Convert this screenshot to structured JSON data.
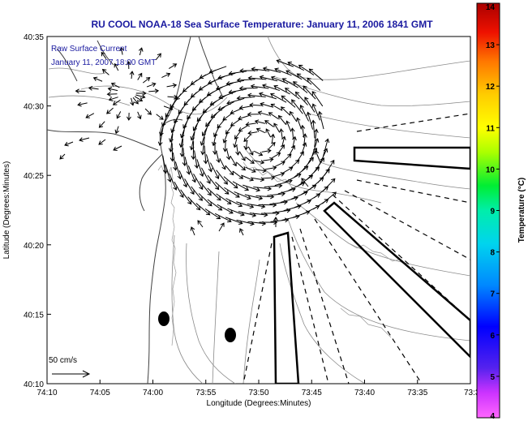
{
  "title": "RU COOL  NOAA-18  Sea Surface Temperature:  January 11, 2006 1841 GMT",
  "annotation": {
    "line1": "Raw Surface Current",
    "line2": "January 11, 2007 18:00 GMT"
  },
  "scale_label": "50 cm/s",
  "chart_data": {
    "type": "map",
    "xlabel": "Longitude (Degrees:Minutes)",
    "ylabel": "Latitude (Degrees:Minutes)",
    "colorbar_label": "Temperature (°C)",
    "x_ticks": [
      "74:10",
      "74:05",
      "74:00",
      "73:55",
      "73:50",
      "73:45",
      "73:40",
      "73:35",
      "73:3"
    ],
    "y_ticks": [
      "40:10",
      "40:15",
      "40:20",
      "40:25",
      "40:30",
      "40:35"
    ],
    "xlim_deg_west": [
      74.1667,
      73.5
    ],
    "ylim_deg_north": [
      40.1667,
      40.5833
    ],
    "colorbar_ticks": [
      "4",
      "5",
      "6",
      "7",
      "8",
      "9",
      "10",
      "11",
      "12",
      "13",
      "14"
    ],
    "colorbar_range": [
      4,
      14
    ],
    "colors": {
      "title": "#1a1aa0",
      "contour": "#808080",
      "coast": "#404040",
      "vector": "#000000"
    },
    "markers": [
      {
        "lon": 73.9833,
        "lat": 40.2433
      },
      {
        "lon": 73.8717,
        "lat": 40.225
      }
    ],
    "eddy_center": {
      "lon": 73.855,
      "lat": 40.4583
    }
  }
}
